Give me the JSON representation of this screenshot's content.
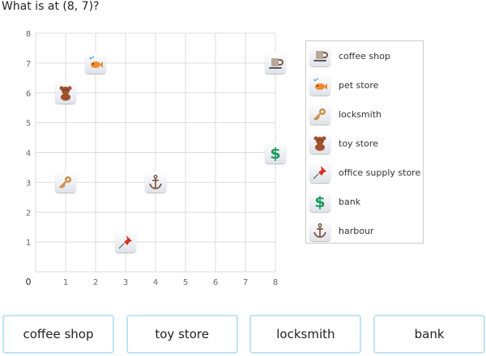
{
  "question": "What is at (8, 7)?",
  "grid": {
    "xlim": [
      0,
      8
    ],
    "ylim": [
      0,
      8
    ],
    "x_ticks": [
      "0",
      "1",
      "2",
      "3",
      "4",
      "5",
      "6",
      "7",
      "8"
    ],
    "y_ticks": [
      "1",
      "2",
      "3",
      "4",
      "5",
      "6",
      "7",
      "8"
    ]
  },
  "points": [
    {
      "icon": "coffee-icon",
      "x": 8,
      "y": 7
    },
    {
      "icon": "fish-icon",
      "x": 2,
      "y": 7
    },
    {
      "icon": "key-icon",
      "x": 1,
      "y": 3
    },
    {
      "icon": "teddy-bear-icon",
      "x": 1,
      "y": 6
    },
    {
      "icon": "pushpin-icon",
      "x": 3,
      "y": 1
    },
    {
      "icon": "dollar-icon",
      "x": 8,
      "y": 4
    },
    {
      "icon": "anchor-icon",
      "x": 4,
      "y": 3
    }
  ],
  "legend": [
    {
      "icon": "coffee-icon",
      "label": "coffee shop"
    },
    {
      "icon": "fish-icon",
      "label": "pet store"
    },
    {
      "icon": "key-icon",
      "label": "locksmith"
    },
    {
      "icon": "teddy-bear-icon",
      "label": "toy store"
    },
    {
      "icon": "pushpin-icon",
      "label": "office supply store"
    },
    {
      "icon": "dollar-icon",
      "label": "bank"
    },
    {
      "icon": "anchor-icon",
      "label": "harbour"
    }
  ],
  "answers": [
    "coffee shop",
    "toy store",
    "locksmith",
    "bank"
  ],
  "colors": {
    "grid": "#dddddd",
    "button_border": "#bfe3f2"
  }
}
